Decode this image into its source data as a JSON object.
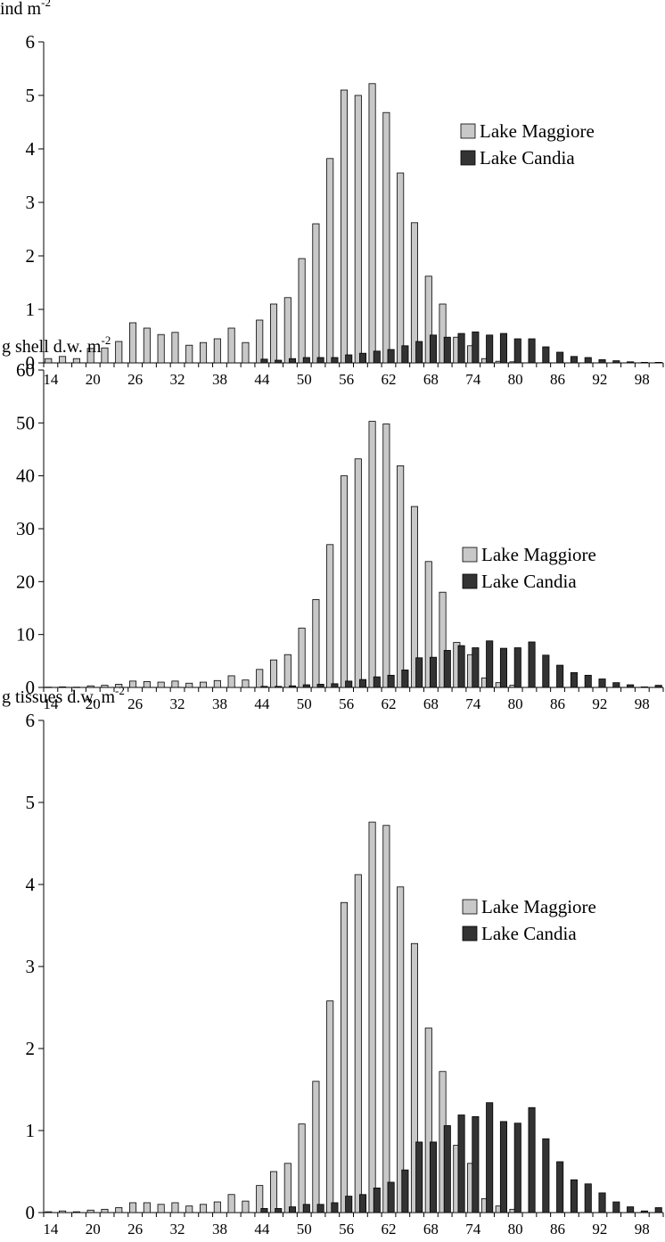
{
  "colors": {
    "maggiore": "#c8c8c8",
    "candia": "#333333",
    "axis": "#000000",
    "background": "#ffffff"
  },
  "chart_data": [
    {
      "type": "bar",
      "ylabel": "ind m",
      "ylabel_sup": "-2",
      "ylim": [
        0,
        6
      ],
      "yticks": [
        "0",
        "1",
        "2",
        "3",
        "4",
        "5",
        "6"
      ],
      "xtick_labels": [
        "14",
        "20",
        "26",
        "32",
        "38",
        "44",
        "50",
        "56",
        "62",
        "68",
        "74",
        "80",
        "86",
        "92",
        "98"
      ],
      "x": [
        14,
        16,
        18,
        20,
        22,
        24,
        26,
        28,
        30,
        32,
        34,
        36,
        38,
        40,
        42,
        44,
        46,
        48,
        50,
        52,
        54,
        56,
        58,
        60,
        62,
        64,
        66,
        68,
        70,
        72,
        74,
        76,
        78,
        80,
        82,
        84,
        86,
        88,
        90,
        92,
        94,
        96,
        98,
        100
      ],
      "legend_position": "right",
      "series": [
        {
          "name": "Lake Maggiore",
          "values": [
            0.08,
            0.12,
            0.08,
            0.27,
            0.28,
            0.4,
            0.75,
            0.65,
            0.53,
            0.57,
            0.33,
            0.38,
            0.45,
            0.65,
            0.38,
            0.8,
            1.1,
            1.22,
            1.95,
            2.6,
            3.82,
            5.1,
            5.0,
            5.22,
            4.68,
            3.55,
            2.62,
            1.62,
            1.1,
            0.48,
            0.32,
            0.08,
            0.03,
            0.02,
            0,
            0,
            0,
            0,
            0,
            0,
            0,
            0,
            0,
            0
          ]
        },
        {
          "name": "Lake Candia",
          "values": [
            0,
            0,
            0,
            0,
            0,
            0,
            0,
            0,
            0,
            0,
            0,
            0,
            0,
            0,
            0,
            0.07,
            0.05,
            0.08,
            0.1,
            0.1,
            0.1,
            0.15,
            0.18,
            0.22,
            0.25,
            0.32,
            0.4,
            0.52,
            0.48,
            0.55,
            0.58,
            0.52,
            0.55,
            0.45,
            0.45,
            0.3,
            0.2,
            0.12,
            0.1,
            0.06,
            0.04,
            0.02,
            0.01,
            0.01
          ]
        }
      ]
    },
    {
      "type": "bar",
      "ylabel": "g shell d.w. m",
      "ylabel_sup": "-2",
      "ylim": [
        0,
        60
      ],
      "yticks": [
        "0",
        "10",
        "20",
        "30",
        "40",
        "50",
        "60"
      ],
      "xtick_labels": [
        "14",
        "20",
        "26",
        "32",
        "38",
        "44",
        "50",
        "56",
        "62",
        "68",
        "74",
        "80",
        "86",
        "92",
        "98"
      ],
      "x": [
        14,
        16,
        18,
        20,
        22,
        24,
        26,
        28,
        30,
        32,
        34,
        36,
        38,
        40,
        42,
        44,
        46,
        48,
        50,
        52,
        54,
        56,
        58,
        60,
        62,
        64,
        66,
        68,
        70,
        72,
        74,
        76,
        78,
        80,
        82,
        84,
        86,
        88,
        90,
        92,
        94,
        96,
        98,
        100
      ],
      "legend_position": "right",
      "series": [
        {
          "name": "Lake Maggiore",
          "values": [
            0.05,
            0.1,
            0.05,
            0.3,
            0.4,
            0.6,
            1.2,
            1.1,
            1.0,
            1.2,
            0.8,
            1.0,
            1.3,
            2.2,
            1.4,
            3.4,
            5.2,
            6.2,
            11.2,
            16.6,
            27.0,
            40.0,
            43.2,
            50.3,
            49.8,
            41.9,
            34.2,
            23.8,
            18.0,
            8.5,
            6.2,
            1.8,
            0.9,
            0.4,
            0,
            0,
            0,
            0,
            0,
            0,
            0,
            0,
            0,
            0
          ]
        },
        {
          "name": "Lake Candia",
          "values": [
            0,
            0,
            0,
            0,
            0,
            0,
            0,
            0,
            0,
            0,
            0,
            0,
            0,
            0,
            0,
            0.2,
            0.2,
            0.3,
            0.5,
            0.6,
            0.7,
            1.2,
            1.5,
            2.0,
            2.3,
            3.3,
            5.6,
            5.7,
            7.0,
            7.9,
            7.5,
            8.8,
            7.4,
            7.5,
            8.6,
            6.1,
            4.2,
            2.8,
            2.3,
            1.6,
            0.9,
            0.5,
            0.1,
            0.4
          ]
        }
      ]
    },
    {
      "type": "bar",
      "ylabel": "g tissues d.w. m",
      "ylabel_sup": "-2",
      "ylim": [
        0,
        6
      ],
      "yticks": [
        "0",
        "1",
        "2",
        "3",
        "4",
        "5",
        "6"
      ],
      "xtick_labels": [
        "14",
        "20",
        "26",
        "32",
        "38",
        "44",
        "50",
        "56",
        "62",
        "68",
        "74",
        "80",
        "86",
        "92",
        "98"
      ],
      "x": [
        14,
        16,
        18,
        20,
        22,
        24,
        26,
        28,
        30,
        32,
        34,
        36,
        38,
        40,
        42,
        44,
        46,
        48,
        50,
        52,
        54,
        56,
        58,
        60,
        62,
        64,
        66,
        68,
        70,
        72,
        74,
        76,
        78,
        80,
        82,
        84,
        86,
        88,
        90,
        92,
        94,
        96,
        98,
        100
      ],
      "legend_position": "right",
      "series": [
        {
          "name": "Lake Maggiore",
          "values": [
            0.01,
            0.02,
            0.01,
            0.03,
            0.04,
            0.06,
            0.12,
            0.12,
            0.1,
            0.12,
            0.08,
            0.1,
            0.13,
            0.22,
            0.14,
            0.33,
            0.5,
            0.6,
            1.08,
            1.6,
            2.58,
            3.78,
            4.12,
            4.76,
            4.72,
            3.97,
            3.28,
            2.25,
            1.72,
            0.82,
            0.6,
            0.17,
            0.08,
            0.04,
            0,
            0,
            0,
            0,
            0,
            0,
            0,
            0,
            0,
            0
          ]
        },
        {
          "name": "Lake Candia",
          "values": [
            0,
            0,
            0,
            0,
            0,
            0,
            0,
            0,
            0,
            0,
            0,
            0,
            0,
            0,
            0,
            0.05,
            0.05,
            0.07,
            0.1,
            0.1,
            0.12,
            0.2,
            0.22,
            0.3,
            0.37,
            0.52,
            0.86,
            0.86,
            1.06,
            1.19,
            1.17,
            1.34,
            1.11,
            1.09,
            1.28,
            0.9,
            0.62,
            0.4,
            0.35,
            0.24,
            0.13,
            0.07,
            0.02,
            0.06
          ]
        }
      ]
    }
  ]
}
